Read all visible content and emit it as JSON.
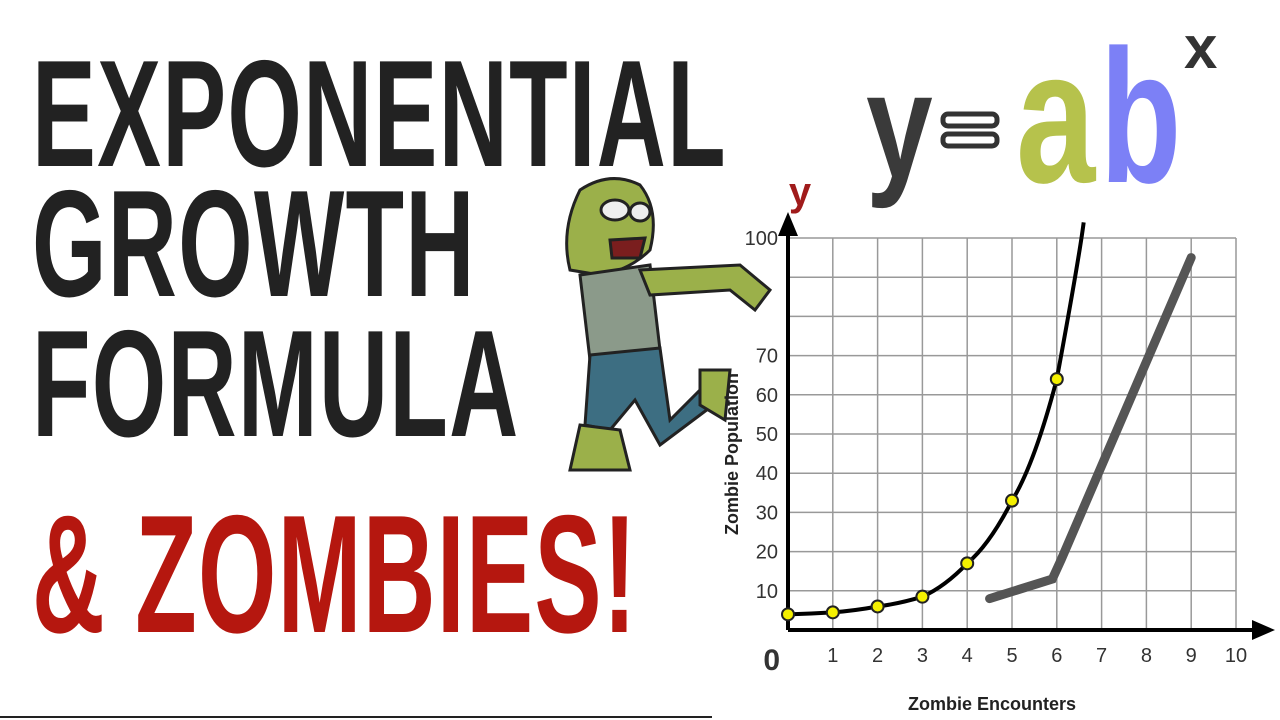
{
  "title_lines": [
    "EXPONENTIAL",
    "GROWTH",
    "FORMULA",
    "& ZOMBIES!"
  ],
  "equation": {
    "y": "y",
    "equals": "=",
    "a": "a",
    "b": "b",
    "x": "x"
  },
  "colors": {
    "title": "#222222",
    "zombies_red": "#b5170f",
    "a_green": "#b6c24c",
    "b_blue": "#7c80f6",
    "point_fill": "#f4f000",
    "y_axis_letter": "#a01b1b"
  },
  "illustrations": [
    "zombie-cartoon",
    "hockey-stick"
  ],
  "chart_data": {
    "type": "line",
    "xlabel": "Zombie Encounters",
    "ylabel": "Zombie Population",
    "y_axis_letter": "y",
    "origin_label": "0",
    "xlim": [
      0,
      10
    ],
    "ylim": [
      0,
      100
    ],
    "x_ticks": [
      "1",
      "2",
      "3",
      "4",
      "5",
      "6",
      "7",
      "8",
      "9",
      "10"
    ],
    "y_ticks": [
      "10",
      "20",
      "30",
      "40",
      "50",
      "60",
      "70",
      "100"
    ],
    "grid": true,
    "series": [
      {
        "x": [
          0,
          1,
          2,
          3,
          4,
          5,
          6
        ],
        "y": [
          4,
          4.5,
          6,
          8.5,
          17,
          33,
          64
        ],
        "markers": true
      }
    ]
  }
}
